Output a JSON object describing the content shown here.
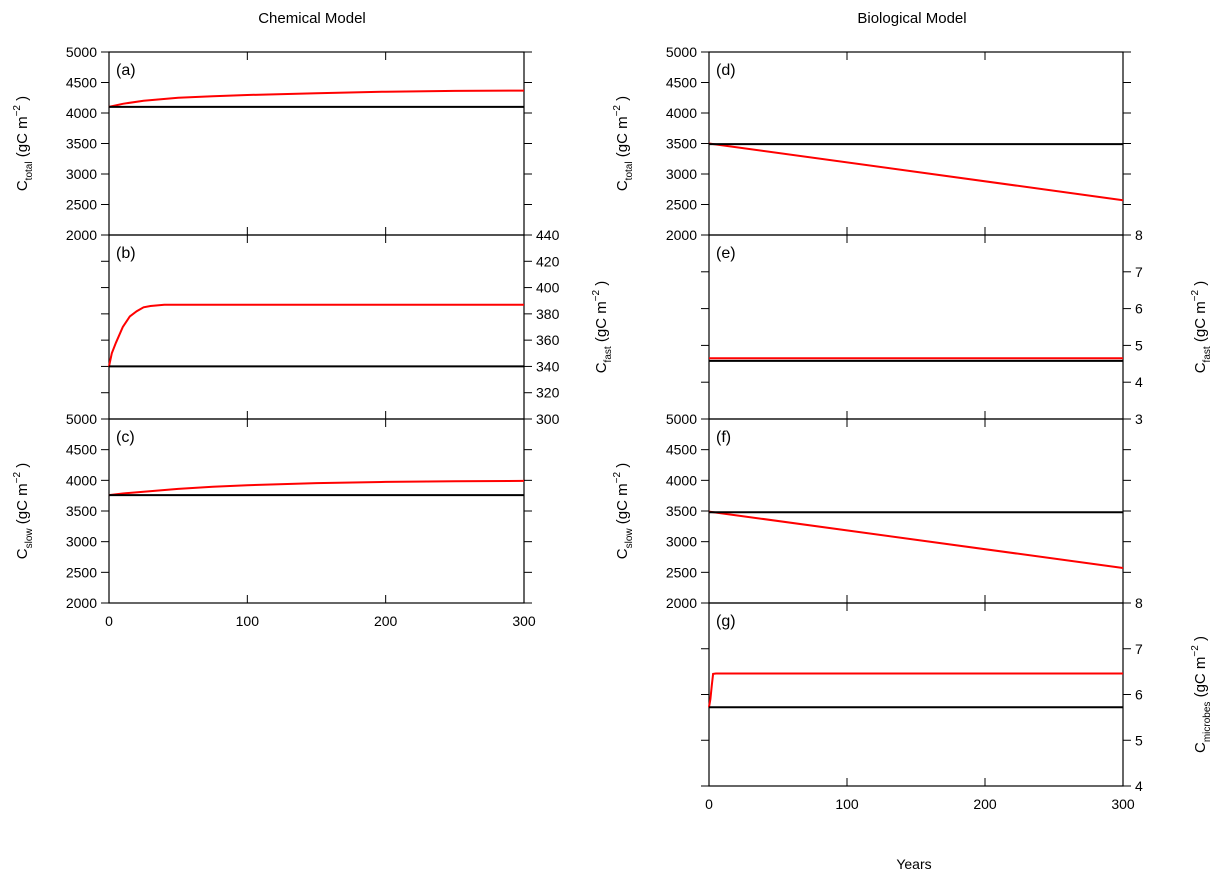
{
  "left_title": "Chemical Model",
  "right_title": "Biological Model",
  "x_axis_label": "Years",
  "colors": {
    "perturbed": "#ff0000",
    "control": "#000000"
  },
  "chart_data": [
    {
      "id": "a",
      "column": "left",
      "panel_label": "(a)",
      "type": "line",
      "ylabel": {
        "base": "C",
        "sub": "total",
        "unit_pre": " (gC m",
        "sup": "−2",
        "unit_post": " )"
      },
      "ylabel_side": "left",
      "ylim": [
        2000,
        5000
      ],
      "yticks": [
        "2000",
        "2500",
        "3000",
        "3500",
        "4000",
        "4500",
        "5000"
      ],
      "xlim": [
        0,
        300
      ],
      "xticks": [],
      "minor_y": [],
      "series": [
        {
          "color": "#ff0000",
          "points": [
            [
              0,
              4100
            ],
            [
              10,
              4150
            ],
            [
              25,
              4200
            ],
            [
              50,
              4250
            ],
            [
              75,
              4275
            ],
            [
              100,
              4295
            ],
            [
              150,
              4325
            ],
            [
              200,
              4350
            ],
            [
              250,
              4362
            ],
            [
              300,
              4368
            ]
          ]
        },
        {
          "color": "#000000",
          "points": [
            [
              0,
              4100
            ],
            [
              300,
              4100
            ]
          ]
        }
      ]
    },
    {
      "id": "b",
      "column": "left",
      "panel_label": "(b)",
      "type": "line",
      "ylabel": {
        "base": "C",
        "sub": "fast",
        "unit_pre": " (gC m",
        "sup": "−2",
        "unit_post": " )"
      },
      "ylabel_side": "right",
      "ylim": [
        300,
        440
      ],
      "yticks": [
        "300",
        "320",
        "340",
        "360",
        "380",
        "400",
        "420",
        "440"
      ],
      "xlim": [
        0,
        300
      ],
      "xticks": [],
      "minor_y": [
        320,
        360,
        400,
        420
      ],
      "series": [
        {
          "color": "#ff0000",
          "points": [
            [
              0,
              340
            ],
            [
              2,
              350
            ],
            [
              5,
              358
            ],
            [
              10,
              370
            ],
            [
              15,
              378
            ],
            [
              20,
              382
            ],
            [
              25,
              385
            ],
            [
              30,
              386
            ],
            [
              40,
              387
            ],
            [
              50,
              387
            ],
            [
              300,
              387
            ]
          ]
        },
        {
          "color": "#000000",
          "points": [
            [
              0,
              340
            ],
            [
              300,
              340
            ]
          ]
        }
      ]
    },
    {
      "id": "c",
      "column": "left",
      "panel_label": "(c)",
      "type": "line",
      "ylabel": {
        "base": "C",
        "sub": "slow",
        "unit_pre": " (gC m",
        "sup": "−2",
        "unit_post": " )"
      },
      "ylabel_side": "left",
      "ylim": [
        2000,
        5000
      ],
      "yticks": [
        "2000",
        "2500",
        "3000",
        "3500",
        "4000",
        "4500",
        "5000"
      ],
      "xlim": [
        0,
        300
      ],
      "xticks": [
        "0",
        "100",
        "200",
        "300"
      ],
      "minor_y": [],
      "series": [
        {
          "color": "#ff0000",
          "points": [
            [
              0,
              3760
            ],
            [
              10,
              3785
            ],
            [
              25,
              3815
            ],
            [
              50,
              3860
            ],
            [
              75,
              3895
            ],
            [
              100,
              3920
            ],
            [
              150,
              3955
            ],
            [
              200,
              3975
            ],
            [
              250,
              3985
            ],
            [
              300,
              3990
            ]
          ]
        },
        {
          "color": "#000000",
          "points": [
            [
              0,
              3760
            ],
            [
              300,
              3760
            ]
          ]
        }
      ]
    },
    {
      "id": "d",
      "column": "right",
      "panel_label": "(d)",
      "type": "line",
      "ylabel": {
        "base": "C",
        "sub": "total",
        "unit_pre": " (gC m",
        "sup": "−2",
        "unit_post": " )"
      },
      "ylabel_side": "left",
      "ylim": [
        2000,
        5000
      ],
      "yticks": [
        "2000",
        "2500",
        "3000",
        "3500",
        "4000",
        "4500",
        "5000"
      ],
      "xlim": [
        0,
        300
      ],
      "xticks": [],
      "minor_y": [],
      "series": [
        {
          "color": "#ff0000",
          "points": [
            [
              0,
              3500
            ],
            [
              300,
              2570
            ]
          ]
        },
        {
          "color": "#000000",
          "points": [
            [
              0,
              3490
            ],
            [
              300,
              3490
            ]
          ]
        }
      ]
    },
    {
      "id": "e",
      "column": "right",
      "panel_label": "(e)",
      "type": "line",
      "ylabel": {
        "base": "C",
        "sub": "fast",
        "unit_pre": " (gC m",
        "sup": "−2",
        "unit_post": " )"
      },
      "ylabel_side": "right",
      "ylim": [
        3,
        8
      ],
      "yticks": [
        "3",
        "4",
        "5",
        "6",
        "7",
        "8"
      ],
      "xlim": [
        0,
        300
      ],
      "xticks": [],
      "minor_y": [],
      "series": [
        {
          "color": "#ff0000",
          "points": [
            [
              0,
              4.65
            ],
            [
              300,
              4.65
            ]
          ]
        },
        {
          "color": "#000000",
          "points": [
            [
              0,
              4.58
            ],
            [
              300,
              4.58
            ]
          ]
        }
      ]
    },
    {
      "id": "f",
      "column": "right",
      "panel_label": "(f)",
      "type": "line",
      "ylabel": {
        "base": "C",
        "sub": "slow",
        "unit_pre": " (gC m",
        "sup": "−2",
        "unit_post": " )"
      },
      "ylabel_side": "left",
      "ylim": [
        2000,
        5000
      ],
      "yticks": [
        "2000",
        "2500",
        "3000",
        "3500",
        "4000",
        "4500",
        "5000"
      ],
      "xlim": [
        0,
        300
      ],
      "xticks": [],
      "minor_y": [],
      "series": [
        {
          "color": "#ff0000",
          "points": [
            [
              0,
              3490
            ],
            [
              300,
              2570
            ]
          ]
        },
        {
          "color": "#000000",
          "points": [
            [
              0,
              3480
            ],
            [
              300,
              3480
            ]
          ]
        }
      ]
    },
    {
      "id": "g",
      "column": "right",
      "panel_label": "(g)",
      "type": "line",
      "ylabel": {
        "base": "C",
        "sub": "microbes",
        "unit_pre": " (gC m",
        "sup": "−2",
        "unit_post": " )"
      },
      "ylabel_side": "right",
      "ylim": [
        4,
        8
      ],
      "yticks": [
        "4",
        "5",
        "6",
        "7",
        "8"
      ],
      "xlim": [
        0,
        300
      ],
      "xticks": [
        "0",
        "100",
        "200",
        "300"
      ],
      "minor_y": [],
      "series": [
        {
          "color": "#ff0000",
          "points": [
            [
              0,
              5.72
            ],
            [
              1,
              5.9
            ],
            [
              2,
              6.2
            ],
            [
              3,
              6.45
            ],
            [
              5,
              6.46
            ],
            [
              300,
              6.46
            ]
          ]
        },
        {
          "color": "#000000",
          "points": [
            [
              0,
              5.72
            ],
            [
              300,
              5.72
            ]
          ]
        }
      ]
    }
  ]
}
